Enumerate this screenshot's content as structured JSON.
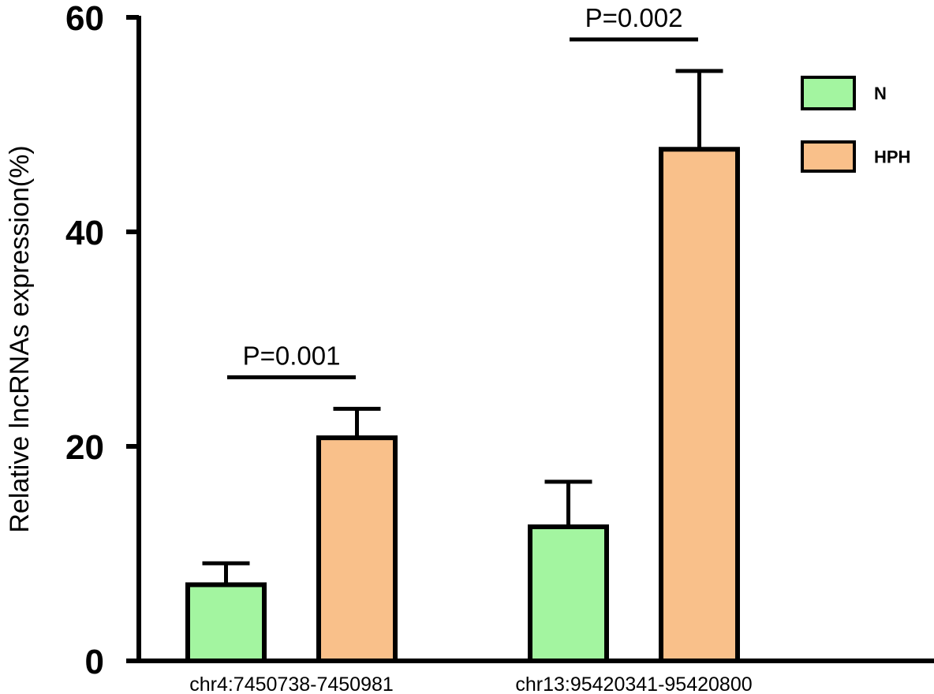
{
  "chart_data": {
    "type": "bar",
    "ylabel": "Relative lncRNAs expression(%)",
    "xlabel": "",
    "ylim": [
      0,
      60
    ],
    "yticks": [
      0,
      20,
      40,
      60
    ],
    "categories": [
      "chr4:7450738-7450981",
      "chr13:95420341-95420800"
    ],
    "series": [
      {
        "name": "N",
        "color": "#a3f5a0",
        "values": [
          7.1,
          12.5
        ],
        "errors": [
          2.0,
          4.2
        ]
      },
      {
        "name": "HPH",
        "color": "#f9c08a",
        "values": [
          20.8,
          47.7
        ],
        "errors": [
          2.7,
          7.3
        ]
      }
    ],
    "annotations": [
      {
        "category": 0,
        "text": "P=0.001"
      },
      {
        "category": 1,
        "text": "P=0.002"
      }
    ],
    "legend": {
      "position": "top-right"
    },
    "grid": false
  }
}
